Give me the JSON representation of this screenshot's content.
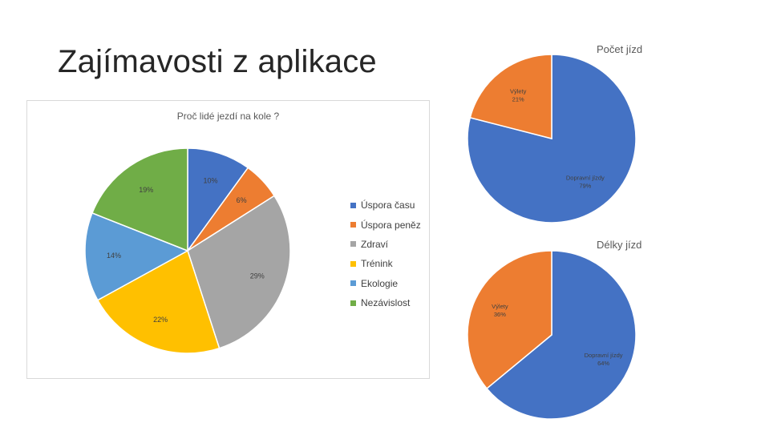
{
  "slide": {
    "title": "Zajímavosti z aplikace"
  },
  "colors": {
    "blue": "#4472C4",
    "orange": "#ED7D31",
    "gray": "#A5A5A5",
    "yellow": "#FFC000",
    "lightblue": "#5B9BD5",
    "green": "#70AD47"
  },
  "chart_data": [
    {
      "type": "pie",
      "title": "Proč lidé jezdí na kole ?",
      "legend_position": "right",
      "categories": [
        "Úspora času",
        "Úspora peněz",
        "Zdraví",
        "Trénink",
        "Ekologie",
        "Nezávislost"
      ],
      "values": [
        10,
        6,
        29,
        22,
        14,
        19
      ],
      "labels": [
        "10%",
        "6%",
        "29%",
        "22%",
        "14%",
        "19%"
      ],
      "colors": [
        "#4472C4",
        "#ED7D31",
        "#A5A5A5",
        "#FFC000",
        "#5B9BD5",
        "#70AD47"
      ]
    },
    {
      "type": "pie",
      "title": "Počet jízd",
      "legend_position": "none",
      "categories": [
        "Dopravní jízdy",
        "Výlety"
      ],
      "values": [
        79,
        21
      ],
      "labels": [
        "79%",
        "21%"
      ],
      "colors": [
        "#4472C4",
        "#ED7D31"
      ]
    },
    {
      "type": "pie",
      "title": "Délky jízd",
      "legend_position": "none",
      "categories": [
        "Dopravní jízdy",
        "Výlety"
      ],
      "values": [
        64,
        36
      ],
      "labels": [
        "64%",
        "36%"
      ],
      "colors": [
        "#4472C4",
        "#ED7D31"
      ]
    }
  ]
}
